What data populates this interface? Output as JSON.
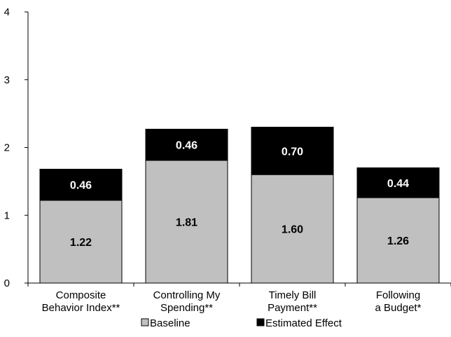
{
  "chart_data": {
    "type": "bar",
    "stacked": true,
    "categories": [
      [
        "Composite",
        "Behavior Index**"
      ],
      [
        "Controlling My",
        "Spending**"
      ],
      [
        "Timely Bill",
        "Payment**"
      ],
      [
        "Following",
        "a Budget*"
      ]
    ],
    "series": [
      {
        "name": "Baseline",
        "values": [
          1.22,
          1.81,
          1.6,
          1.26
        ],
        "labels": [
          "1.22",
          "1.81",
          "1.60",
          "1.26"
        ],
        "color": "#c0c0c0",
        "label_color": "#000000"
      },
      {
        "name": "Estimated Effect",
        "values": [
          0.46,
          0.46,
          0.7,
          0.44
        ],
        "labels": [
          "0.46",
          "0.46",
          "0.70",
          "0.44"
        ],
        "color": "#000000",
        "label_color": "#ffffff"
      }
    ],
    "ylim": [
      0,
      4
    ],
    "yticks": [
      "0",
      "1",
      "2",
      "3",
      "4"
    ],
    "grid": false,
    "legend_position": "bottom"
  }
}
